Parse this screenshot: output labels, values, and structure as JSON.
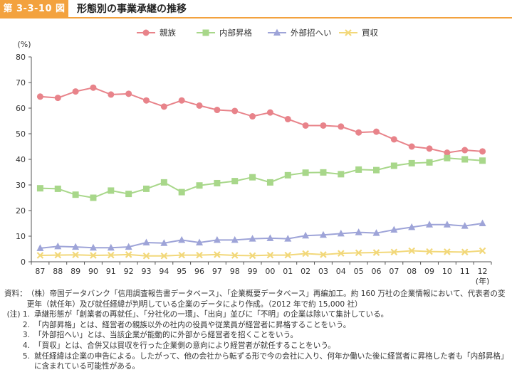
{
  "figure": {
    "number": "第 3-3-10 図",
    "title": "形態別の事業承継の推移"
  },
  "chart_data": {
    "type": "line",
    "categories": [
      "87",
      "88",
      "89",
      "90",
      "91",
      "92",
      "93",
      "94",
      "95",
      "96",
      "97",
      "98",
      "99",
      "00",
      "01",
      "02",
      "03",
      "04",
      "05",
      "06",
      "07",
      "08",
      "09",
      "10",
      "11",
      "12"
    ],
    "ylabel": "(%)",
    "xlabel": "(年)",
    "ylim": [
      0,
      80
    ],
    "yticks": [
      0,
      10,
      20,
      30,
      40,
      50,
      60,
      70,
      80
    ],
    "grid": false,
    "legend_position": "top-center",
    "series": [
      {
        "name": "親族",
        "color": "#e8838a",
        "marker": "circle",
        "values": [
          64.5,
          64.0,
          66.5,
          68.0,
          65.3,
          65.6,
          63.0,
          60.6,
          63.0,
          61.0,
          59.3,
          58.9,
          56.8,
          58.3,
          55.7,
          53.2,
          53.2,
          52.8,
          50.5,
          50.8,
          47.8,
          45.0,
          44.2,
          42.6,
          43.6,
          43.1
        ]
      },
      {
        "name": "内部昇格",
        "color": "#a8d78a",
        "marker": "square",
        "values": [
          28.7,
          28.5,
          26.2,
          25.0,
          27.8,
          26.5,
          28.5,
          31.0,
          27.2,
          29.8,
          30.7,
          31.5,
          33.0,
          31.0,
          33.8,
          34.8,
          34.9,
          34.2,
          36.0,
          35.8,
          37.5,
          38.5,
          38.8,
          40.5,
          40.0,
          39.5
        ]
      },
      {
        "name": "外部招へい",
        "color": "#9ea4d8",
        "marker": "triangle",
        "values": [
          5.3,
          6.0,
          5.8,
          5.5,
          5.5,
          5.8,
          7.5,
          7.3,
          8.5,
          7.5,
          8.5,
          8.5,
          9.0,
          9.2,
          9.0,
          10.2,
          10.5,
          11.0,
          11.5,
          11.2,
          12.5,
          13.5,
          14.5,
          14.5,
          14.0,
          15.0
        ]
      },
      {
        "name": "買収",
        "color": "#f2d87a",
        "marker": "x",
        "values": [
          2.5,
          2.6,
          2.7,
          2.5,
          2.6,
          2.8,
          2.3,
          2.3,
          2.6,
          2.6,
          2.8,
          2.5,
          2.4,
          2.6,
          2.6,
          3.2,
          2.8,
          3.3,
          3.5,
          3.6,
          3.8,
          4.3,
          4.0,
          3.9,
          3.8,
          4.3
        ]
      }
    ]
  },
  "notes": {
    "source_label": "資料：",
    "source_text": "（株）帝国データバンク「信用調査報告書データベース」、「企業概要データベース」再編加工。約 160 万社の企業情報において、代表者の変更年（就任年）及び就任経緯が判明している企業のデータにより作成。（2012 年で約 15,000 社）",
    "items": [
      {
        "num": "(注) 1.",
        "text": "承継形態が「創業者の再就任」、「分社化の一環」、「出向」並びに「不明」の企業は除いて集計している。"
      },
      {
        "num": "2.",
        "text": "「内部昇格」とは、経営者の親族以外の社内の役員や従業員が経営者に昇格することをいう。"
      },
      {
        "num": "3.",
        "text": "「外部招へい」とは、当該企業が能動的に外部から経営者を招くことをいう。"
      },
      {
        "num": "4.",
        "text": "「買収」とは、合併又は買収を行った企業側の意向により経営者が就任することをいう。"
      },
      {
        "num": "5.",
        "text": "就任経緯は企業の申告による。したがって、他の会社から転ずる形で今の会社に入り、何年か働いた後に経営者に昇格した者も「内部昇格」に含まれている可能性がある。"
      }
    ]
  }
}
